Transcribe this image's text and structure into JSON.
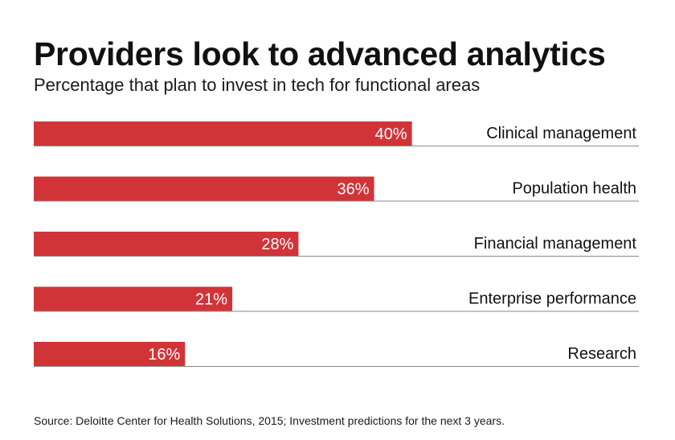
{
  "chart_data": {
    "type": "bar",
    "orientation": "horizontal",
    "title": "Providers look to advanced analytics",
    "subtitle": "Percentage that plan to invest in tech for functional areas",
    "categories": [
      "Clinical management",
      "Population health",
      "Financial management",
      "Enterprise performance",
      "Research"
    ],
    "values": [
      40,
      36,
      28,
      21,
      16
    ],
    "value_labels": [
      "40%",
      "36%",
      "28%",
      "21%",
      "16%"
    ],
    "unit": "%",
    "xlim": [
      0,
      64
    ],
    "bar_color": "#d13438",
    "rule_color": "#8a8a8a",
    "xlabel": "",
    "ylabel": "",
    "grid": false,
    "legend": "none"
  },
  "footer": {
    "source": "Source: Deloitte Center for Health Solutions, 2015; Investment predictions for the next 3 years."
  }
}
